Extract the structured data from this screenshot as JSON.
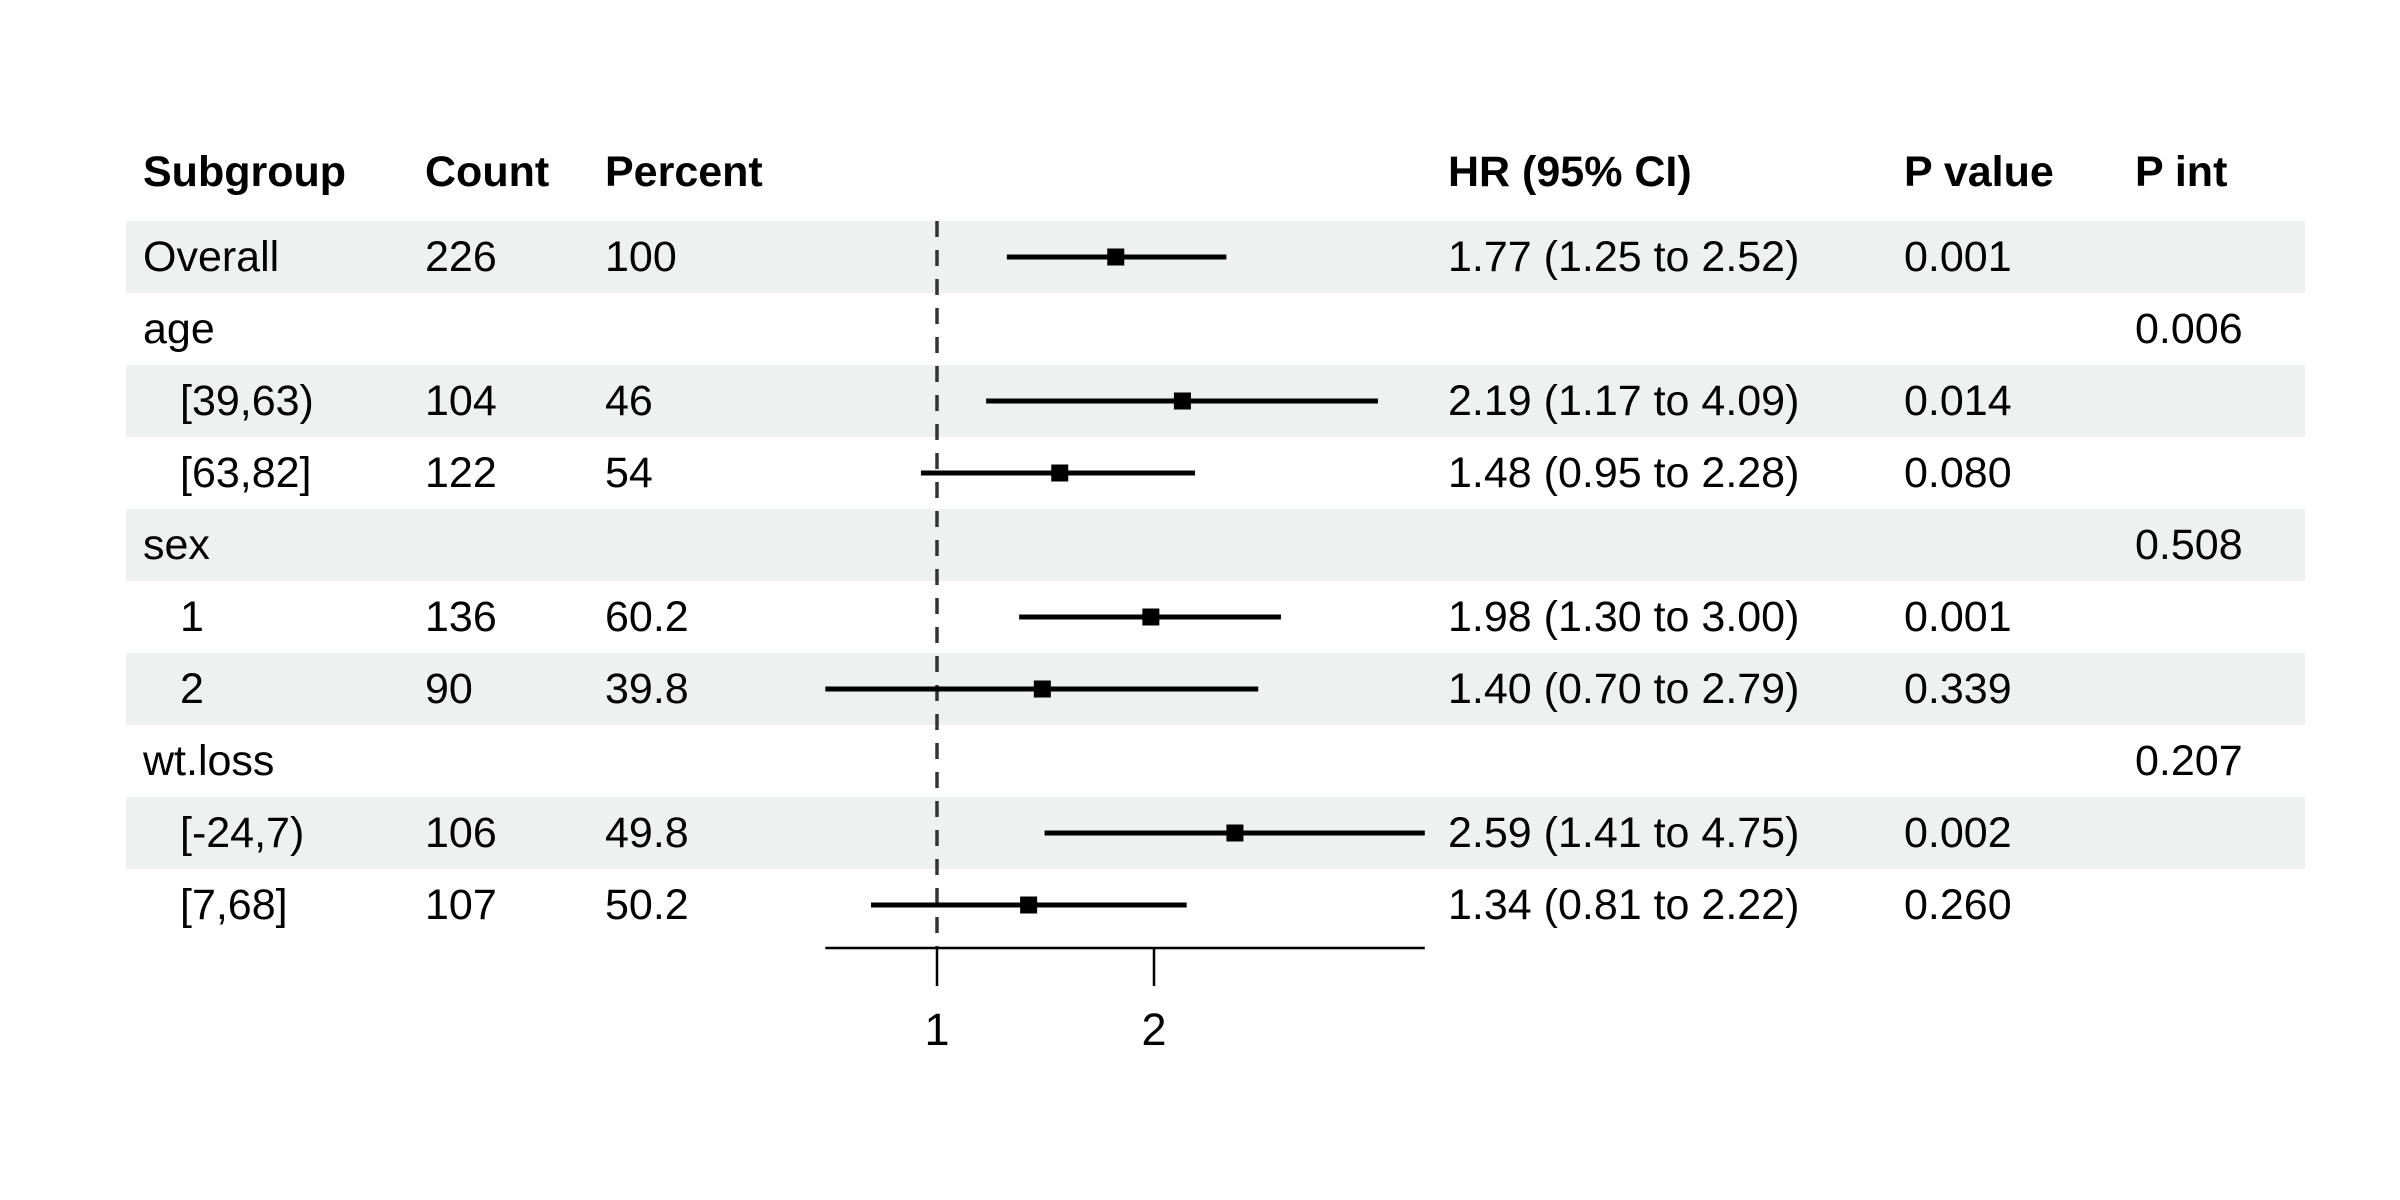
{
  "table": {
    "headers": {
      "subgroup": "Subgroup",
      "count": "Count",
      "percent": "Percent",
      "hr": "HR (95% CI)",
      "p_value": "P value",
      "p_int": "P int"
    },
    "rows": [
      {
        "label": "Overall",
        "indent": false,
        "count": "226",
        "percent": "100",
        "hr_text": "1.77 (1.25 to 2.52)",
        "p_value": "0.001",
        "p_int": "",
        "striped": true,
        "est": 1.77,
        "low": 1.25,
        "high": 2.52
      },
      {
        "label": "age",
        "indent": false,
        "count": "",
        "percent": "",
        "hr_text": "",
        "p_value": "",
        "p_int": "0.006",
        "striped": false,
        "est": null,
        "low": null,
        "high": null
      },
      {
        "label": "[39,63)",
        "indent": true,
        "count": "104",
        "percent": "46",
        "hr_text": "2.19 (1.17 to 4.09)",
        "p_value": "0.014",
        "p_int": "",
        "striped": true,
        "est": 2.19,
        "low": 1.17,
        "high": 4.09
      },
      {
        "label": "[63,82]",
        "indent": true,
        "count": "122",
        "percent": "54",
        "hr_text": "1.48 (0.95 to 2.28)",
        "p_value": "0.080",
        "p_int": "",
        "striped": false,
        "est": 1.48,
        "low": 0.95,
        "high": 2.28
      },
      {
        "label": "sex",
        "indent": false,
        "count": "",
        "percent": "",
        "hr_text": "",
        "p_value": "",
        "p_int": "0.508",
        "striped": true,
        "est": null,
        "low": null,
        "high": null
      },
      {
        "label": "1",
        "indent": true,
        "count": "136",
        "percent": "60.2",
        "hr_text": "1.98 (1.30 to 3.00)",
        "p_value": "0.001",
        "p_int": "",
        "striped": false,
        "est": 1.98,
        "low": 1.3,
        "high": 3.0
      },
      {
        "label": "2",
        "indent": true,
        "count": "90",
        "percent": "39.8",
        "hr_text": "1.40 (0.70 to 2.79)",
        "p_value": "0.339",
        "p_int": "",
        "striped": true,
        "est": 1.4,
        "low": 0.7,
        "high": 2.79
      },
      {
        "label": "wt.loss",
        "indent": false,
        "count": "",
        "percent": "",
        "hr_text": "",
        "p_value": "",
        "p_int": "0.207",
        "striped": false,
        "est": null,
        "low": null,
        "high": null
      },
      {
        "label": "[-24,7)",
        "indent": true,
        "count": "106",
        "percent": "49.8",
        "hr_text": "2.59 (1.41 to 4.75)",
        "p_value": "0.002",
        "p_int": "",
        "striped": true,
        "est": 2.59,
        "low": 1.41,
        "high": 4.75
      },
      {
        "label": "[7,68]",
        "indent": true,
        "count": "107",
        "percent": "50.2",
        "hr_text": "1.34 (0.81 to 2.22)",
        "p_value": "0.260",
        "p_int": "",
        "striped": false,
        "est": 1.34,
        "low": 0.81,
        "high": 2.22
      }
    ]
  },
  "chart_data": {
    "type": "forest",
    "x_scale": "log2",
    "x_ticks": [
      1,
      2
    ],
    "reference_line": 1,
    "axis_range": [
      0.7,
      4.75
    ],
    "legend_position": "none",
    "grid": false,
    "estimates": [
      {
        "subgroup": "Overall",
        "hr": 1.77,
        "low": 1.25,
        "high": 2.52,
        "p_value": "0.001"
      },
      {
        "subgroup": "age [39,63)",
        "hr": 2.19,
        "low": 1.17,
        "high": 4.09,
        "p_value": "0.014",
        "p_interaction": "0.006"
      },
      {
        "subgroup": "age [63,82]",
        "hr": 1.48,
        "low": 0.95,
        "high": 2.28,
        "p_value": "0.080"
      },
      {
        "subgroup": "sex 1",
        "hr": 1.98,
        "low": 1.3,
        "high": 3.0,
        "p_value": "0.001",
        "p_interaction": "0.508"
      },
      {
        "subgroup": "sex 2",
        "hr": 1.4,
        "low": 0.7,
        "high": 2.79,
        "p_value": "0.339"
      },
      {
        "subgroup": "wt.loss [-24,7)",
        "hr": 2.59,
        "low": 1.41,
        "high": 4.75,
        "p_value": "0.002",
        "p_interaction": "0.207"
      },
      {
        "subgroup": "wt.loss [7,68]",
        "hr": 1.34,
        "low": 0.81,
        "high": 2.22,
        "p_value": "0.260"
      }
    ]
  },
  "colors": {
    "stripe": "#edf1f0",
    "text": "#000000",
    "ci_line": "#000000",
    "marker": "#000000",
    "axis": "#000000",
    "reference_line": "#333333"
  }
}
